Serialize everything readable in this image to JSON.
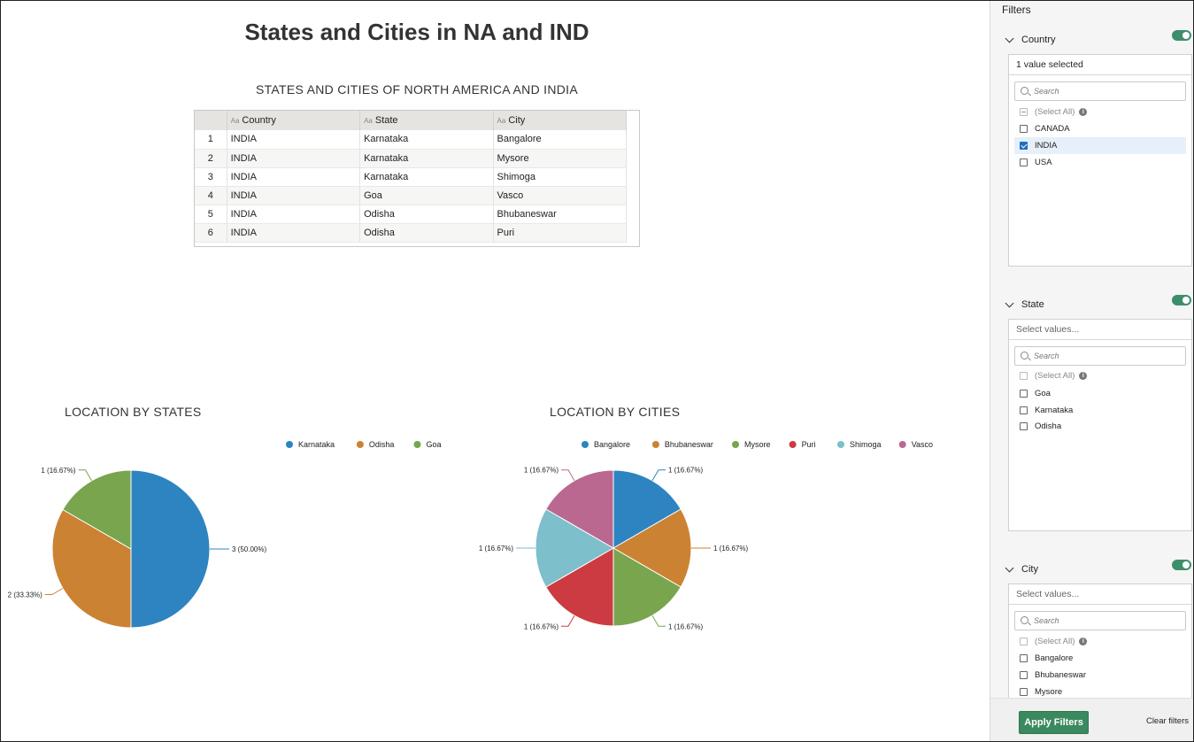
{
  "dashboard": {
    "title": "States and Cities in NA and IND",
    "table": {
      "title": "STATES AND CITIES OF NORTH AMERICA AND INDIA",
      "type_glyph": "Aa",
      "columns": [
        "Country",
        "State",
        "City"
      ],
      "rows": [
        [
          "1",
          "INDIA",
          "Karnataka",
          "Bangalore"
        ],
        [
          "2",
          "INDIA",
          "Karnataka",
          "Mysore"
        ],
        [
          "3",
          "INDIA",
          "Karnataka",
          "Shimoga"
        ],
        [
          "4",
          "INDIA",
          "Goa",
          "Vasco"
        ],
        [
          "5",
          "INDIA",
          "Odisha",
          "Bhubaneswar"
        ],
        [
          "6",
          "INDIA",
          "Odisha",
          "Puri"
        ]
      ]
    }
  },
  "chart_data": [
    {
      "type": "pie",
      "title": "LOCATION BY STATES",
      "categories": [
        "Karnataka",
        "Odisha",
        "Goa"
      ],
      "values": [
        3,
        2,
        1
      ],
      "data_labels": [
        "3 (50.00%)",
        "2 (33.33%)",
        "1 (16.67%)"
      ],
      "colors": [
        "#2d84c0",
        "#cb8233",
        "#78a54e"
      ],
      "legend": "top-right"
    },
    {
      "type": "pie",
      "title": "LOCATION BY CITIES",
      "categories": [
        "Bangalore",
        "Bhubaneswar",
        "Mysore",
        "Puri",
        "Shimoga",
        "Vasco"
      ],
      "values": [
        1,
        1,
        1,
        1,
        1,
        1
      ],
      "data_labels": [
        "1 (16.67%)",
        "1 (16.67%)",
        "1 (16.67%)",
        "1 (16.67%)",
        "1 (16.67%)",
        "1 (16.67%)"
      ],
      "colors": [
        "#2d84c0",
        "#cb8233",
        "#78a54e",
        "#cc3b41",
        "#7dbfcb",
        "#ba6890"
      ],
      "legend": "top"
    }
  ],
  "filters": {
    "title": "Filters",
    "search_placeholder": "Search",
    "select_all_label": "(Select All)",
    "info_glyph": "i",
    "toggle_color": "#3c8f6a",
    "country": {
      "label": "Country",
      "summary": "1 value selected",
      "options": [
        "CANADA",
        "INDIA",
        "USA"
      ],
      "selected": "INDIA"
    },
    "state": {
      "label": "State",
      "summary": "Select values...",
      "options": [
        "Goa",
        "Karnataka",
        "Odisha"
      ]
    },
    "city": {
      "label": "City",
      "summary": "Select values...",
      "options": [
        "Bangalore",
        "Bhubaneswar",
        "Mysore"
      ]
    },
    "apply_label": "Apply Filters",
    "clear_label": "Clear filters"
  }
}
